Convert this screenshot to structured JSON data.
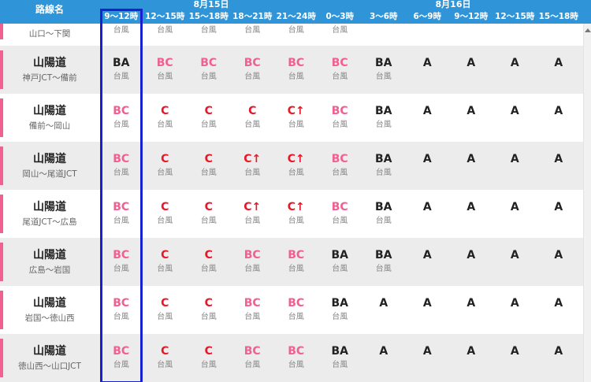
{
  "header": {
    "route_label": "路線名",
    "date1": "8月15日",
    "date2": "8月16日",
    "columns": [
      "9〜12時",
      "12〜15時",
      "15〜18時",
      "18〜21時",
      "21〜24時",
      "0〜3時",
      "3〜6時",
      "6〜9時",
      "9〜12時",
      "12〜15時",
      "15〜18時"
    ]
  },
  "colors": {
    "accent": "#2f95d8",
    "highlight": "#1a1fd0",
    "bc": "#f06090",
    "c": "#e8182a",
    "route_bar": "#f06090"
  },
  "rows": [
    {
      "name": "",
      "section": "山口〜下関",
      "cells": [
        {
          "level": "",
          "sub": "台風"
        },
        {
          "level": "",
          "sub": "台風"
        },
        {
          "level": "",
          "sub": "台風"
        },
        {
          "level": "",
          "sub": "台風"
        },
        {
          "level": "",
          "sub": "台風"
        },
        {
          "level": "",
          "sub": "台風"
        },
        {
          "level": "",
          "sub": ""
        },
        {
          "level": "",
          "sub": ""
        },
        {
          "level": "",
          "sub": ""
        },
        {
          "level": "",
          "sub": ""
        },
        {
          "level": "",
          "sub": ""
        }
      ]
    },
    {
      "name": "山陽道",
      "section": "神戸JCT〜備前",
      "cells": [
        {
          "level": "BA",
          "sub": "台風"
        },
        {
          "level": "BC",
          "sub": "台風"
        },
        {
          "level": "BC",
          "sub": "台風"
        },
        {
          "level": "BC",
          "sub": "台風"
        },
        {
          "level": "BC",
          "sub": "台風"
        },
        {
          "level": "BC",
          "sub": "台風"
        },
        {
          "level": "BA",
          "sub": "台風"
        },
        {
          "level": "A",
          "sub": ""
        },
        {
          "level": "A",
          "sub": ""
        },
        {
          "level": "A",
          "sub": ""
        },
        {
          "level": "A",
          "sub": ""
        }
      ]
    },
    {
      "name": "山陽道",
      "section": "備前〜岡山",
      "cells": [
        {
          "level": "BC",
          "sub": "台風"
        },
        {
          "level": "C",
          "sub": "台風"
        },
        {
          "level": "C",
          "sub": "台風"
        },
        {
          "level": "C",
          "sub": "台風"
        },
        {
          "level": "C↑",
          "sub": "台風"
        },
        {
          "level": "BC",
          "sub": "台風"
        },
        {
          "level": "BA",
          "sub": "台風"
        },
        {
          "level": "A",
          "sub": ""
        },
        {
          "level": "A",
          "sub": ""
        },
        {
          "level": "A",
          "sub": ""
        },
        {
          "level": "A",
          "sub": ""
        }
      ]
    },
    {
      "name": "山陽道",
      "section": "岡山〜尾道JCT",
      "cells": [
        {
          "level": "BC",
          "sub": "台風"
        },
        {
          "level": "C",
          "sub": "台風"
        },
        {
          "level": "C",
          "sub": "台風"
        },
        {
          "level": "C↑",
          "sub": "台風"
        },
        {
          "level": "C↑",
          "sub": "台風"
        },
        {
          "level": "BC",
          "sub": "台風"
        },
        {
          "level": "BA",
          "sub": "台風"
        },
        {
          "level": "A",
          "sub": ""
        },
        {
          "level": "A",
          "sub": ""
        },
        {
          "level": "A",
          "sub": ""
        },
        {
          "level": "A",
          "sub": ""
        }
      ]
    },
    {
      "name": "山陽道",
      "section": "尾道JCT〜広島",
      "cells": [
        {
          "level": "BC",
          "sub": "台風"
        },
        {
          "level": "C",
          "sub": "台風"
        },
        {
          "level": "C",
          "sub": "台風"
        },
        {
          "level": "C↑",
          "sub": "台風"
        },
        {
          "level": "C↑",
          "sub": "台風"
        },
        {
          "level": "BC",
          "sub": "台風"
        },
        {
          "level": "BA",
          "sub": "台風"
        },
        {
          "level": "A",
          "sub": ""
        },
        {
          "level": "A",
          "sub": ""
        },
        {
          "level": "A",
          "sub": ""
        },
        {
          "level": "A",
          "sub": ""
        }
      ]
    },
    {
      "name": "山陽道",
      "section": "広島〜岩国",
      "cells": [
        {
          "level": "BC",
          "sub": "台風"
        },
        {
          "level": "C",
          "sub": "台風"
        },
        {
          "level": "C",
          "sub": "台風"
        },
        {
          "level": "BC",
          "sub": "台風"
        },
        {
          "level": "BC",
          "sub": "台風"
        },
        {
          "level": "BA",
          "sub": "台風"
        },
        {
          "level": "BA",
          "sub": "台風"
        },
        {
          "level": "A",
          "sub": ""
        },
        {
          "level": "A",
          "sub": ""
        },
        {
          "level": "A",
          "sub": ""
        },
        {
          "level": "A",
          "sub": ""
        }
      ]
    },
    {
      "name": "山陽道",
      "section": "岩国〜徳山西",
      "cells": [
        {
          "level": "BC",
          "sub": "台風"
        },
        {
          "level": "C",
          "sub": "台風"
        },
        {
          "level": "C",
          "sub": "台風"
        },
        {
          "level": "BC",
          "sub": "台風"
        },
        {
          "level": "BC",
          "sub": "台風"
        },
        {
          "level": "BA",
          "sub": "台風"
        },
        {
          "level": "A",
          "sub": ""
        },
        {
          "level": "A",
          "sub": ""
        },
        {
          "level": "A",
          "sub": ""
        },
        {
          "level": "A",
          "sub": ""
        },
        {
          "level": "A",
          "sub": ""
        }
      ]
    },
    {
      "name": "山陽道",
      "section": "徳山西〜山口JCT",
      "cells": [
        {
          "level": "BC",
          "sub": "台風"
        },
        {
          "level": "C",
          "sub": "台風"
        },
        {
          "level": "C",
          "sub": "台風"
        },
        {
          "level": "BC",
          "sub": "台風"
        },
        {
          "level": "BC",
          "sub": "台風"
        },
        {
          "level": "BA",
          "sub": "台風"
        },
        {
          "level": "A",
          "sub": ""
        },
        {
          "level": "A",
          "sub": ""
        },
        {
          "level": "A",
          "sub": ""
        },
        {
          "level": "A",
          "sub": ""
        },
        {
          "level": "A",
          "sub": ""
        }
      ]
    }
  ]
}
